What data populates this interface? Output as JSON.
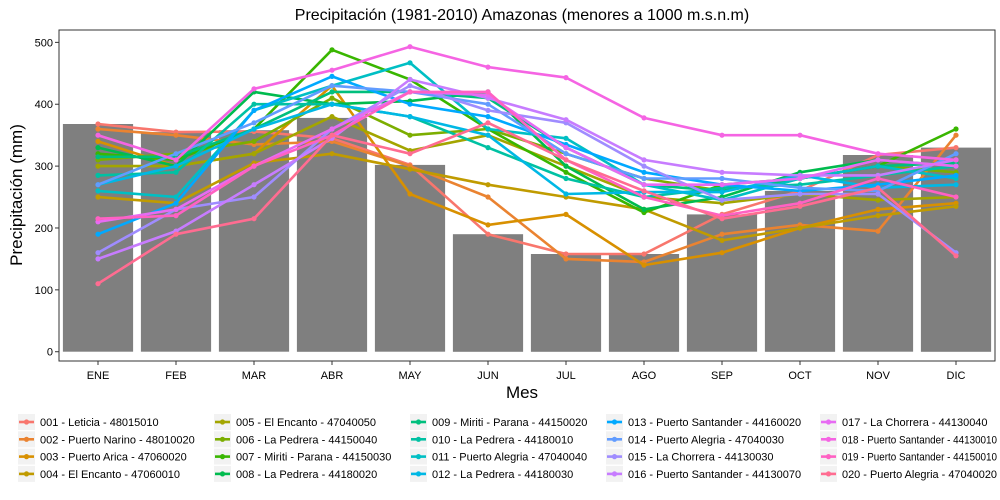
{
  "chart_data": {
    "type": "bar+line",
    "title": "Precipitación (1981-2010) Amazonas (menores a 1000 m.s.n.m)",
    "xlabel": "Mes",
    "ylabel": "Precipitación (mm)",
    "ylim": [
      -15,
      520
    ],
    "yticks": [
      0,
      100,
      200,
      300,
      400,
      500
    ],
    "grid": false,
    "legend_position": "bottom",
    "categories": [
      "ENE",
      "FEB",
      "MAR",
      "ABR",
      "MAY",
      "JUN",
      "JUL",
      "AGO",
      "SEP",
      "OCT",
      "NOV",
      "DIC"
    ],
    "bars": {
      "color": "#7f7f7f",
      "values": [
        368,
        355,
        358,
        378,
        302,
        190,
        158,
        158,
        222,
        260,
        318,
        330
      ]
    },
    "series": [
      {
        "name": "001 - Leticia - 48015010",
        "color": "#F8766D",
        "values": [
          368,
          355,
          356,
          345,
          302,
          190,
          158,
          158,
          222,
          260,
          318,
          330
        ]
      },
      {
        "name": "002 - Puerto Narino - 48010020",
        "color": "#EA8331",
        "values": [
          360,
          350,
          335,
          340,
          300,
          250,
          150,
          145,
          190,
          205,
          195,
          350
        ]
      },
      {
        "name": "003 - Puerto Arica - 47060020",
        "color": "#D89000",
        "values": [
          340,
          300,
          320,
          430,
          255,
          205,
          222,
          140,
          160,
          200,
          230,
          240
        ]
      },
      {
        "name": "004 - El Encanto - 47060010",
        "color": "#C09B00",
        "values": [
          250,
          240,
          305,
          320,
          295,
          270,
          250,
          230,
          180,
          200,
          220,
          235
        ]
      },
      {
        "name": "005 - El Encanto - 47040050",
        "color": "#A3A500",
        "values": [
          300,
          300,
          320,
          380,
          325,
          350,
          300,
          250,
          240,
          255,
          245,
          250
        ]
      },
      {
        "name": "006 - La Pedrera - 44150040",
        "color": "#7CAE00",
        "values": [
          310,
          320,
          340,
          410,
          350,
          360,
          320,
          280,
          260,
          280,
          300,
          290
        ]
      },
      {
        "name": "007 - Miriti - Parana - 44150030",
        "color": "#39B600",
        "values": [
          320,
          310,
          360,
          488,
          440,
          360,
          290,
          225,
          270,
          280,
          300,
          360
        ]
      },
      {
        "name": "008 - La Pedrera - 44180020",
        "color": "#00BB4E",
        "values": [
          330,
          300,
          420,
          400,
          405,
          420,
          300,
          230,
          250,
          290,
          310,
          300
        ]
      },
      {
        "name": "009 - Miriti - Parana - 44150020",
        "color": "#00BF7D",
        "values": [
          315,
          315,
          360,
          420,
          420,
          410,
          330,
          270,
          260,
          280,
          300,
          305
        ]
      },
      {
        "name": "010 - La Pedrera - 44180010",
        "color": "#00C1A3",
        "values": [
          285,
          290,
          400,
          400,
          380,
          330,
          280,
          250,
          265,
          270,
          285,
          300
        ]
      },
      {
        "name": "011 - Puerto Alegria - 47040040",
        "color": "#00BFC4",
        "values": [
          260,
          250,
          390,
          430,
          467,
          360,
          345,
          270,
          245,
          280,
          300,
          280
        ]
      },
      {
        "name": "012 - La Pedrera - 44180030",
        "color": "#00B8E5",
        "values": [
          270,
          300,
          360,
          400,
          380,
          350,
          255,
          258,
          258,
          285,
          265,
          270
        ]
      },
      {
        "name": "013 - Puerto Santander - 44160020",
        "color": "#00A9FF",
        "values": [
          190,
          240,
          390,
          445,
          400,
          380,
          335,
          290,
          270,
          260,
          270,
          285
        ]
      },
      {
        "name": "014 - Puerto Alegria - 47040030",
        "color": "#619CFF",
        "values": [
          270,
          320,
          370,
          430,
          420,
          400,
          320,
          280,
          280,
          265,
          260,
          320
        ]
      },
      {
        "name": "015 - La Chorrera - 44130030",
        "color": "#9F8CFF",
        "values": [
          160,
          230,
          250,
          360,
          430,
          390,
          370,
          300,
          245,
          255,
          255,
          160
        ]
      },
      {
        "name": "016 - Puerto Santander - 44130070",
        "color": "#C77CFF",
        "values": [
          150,
          195,
          270,
          345,
          440,
          410,
          375,
          310,
          290,
          285,
          285,
          310
        ]
      },
      {
        "name": "017 - La Chorrera - 44130040",
        "color": "#E76BF3",
        "values": [
          210,
          230,
          300,
          360,
          420,
          415,
          330,
          270,
          270,
          280,
          310,
          300
        ]
      },
      {
        "name": "018 - Puerto Santander - 44130010",
        "color": "#F564E3",
        "values": [
          350,
          310,
          425,
          455,
          493,
          460,
          443,
          378,
          350,
          350,
          320,
          310
        ]
      },
      {
        "name": "019 - Puerto Santander - 44150010",
        "color": "#FF61C3",
        "values": [
          215,
          220,
          300,
          350,
          420,
          420,
          310,
          250,
          220,
          240,
          280,
          250
        ]
      },
      {
        "name": "020 - Puerto Alegria - 47040020",
        "color": "#FF6C91",
        "values": [
          110,
          190,
          215,
          350,
          320,
          370,
          310,
          260,
          215,
          235,
          265,
          155
        ]
      }
    ]
  }
}
